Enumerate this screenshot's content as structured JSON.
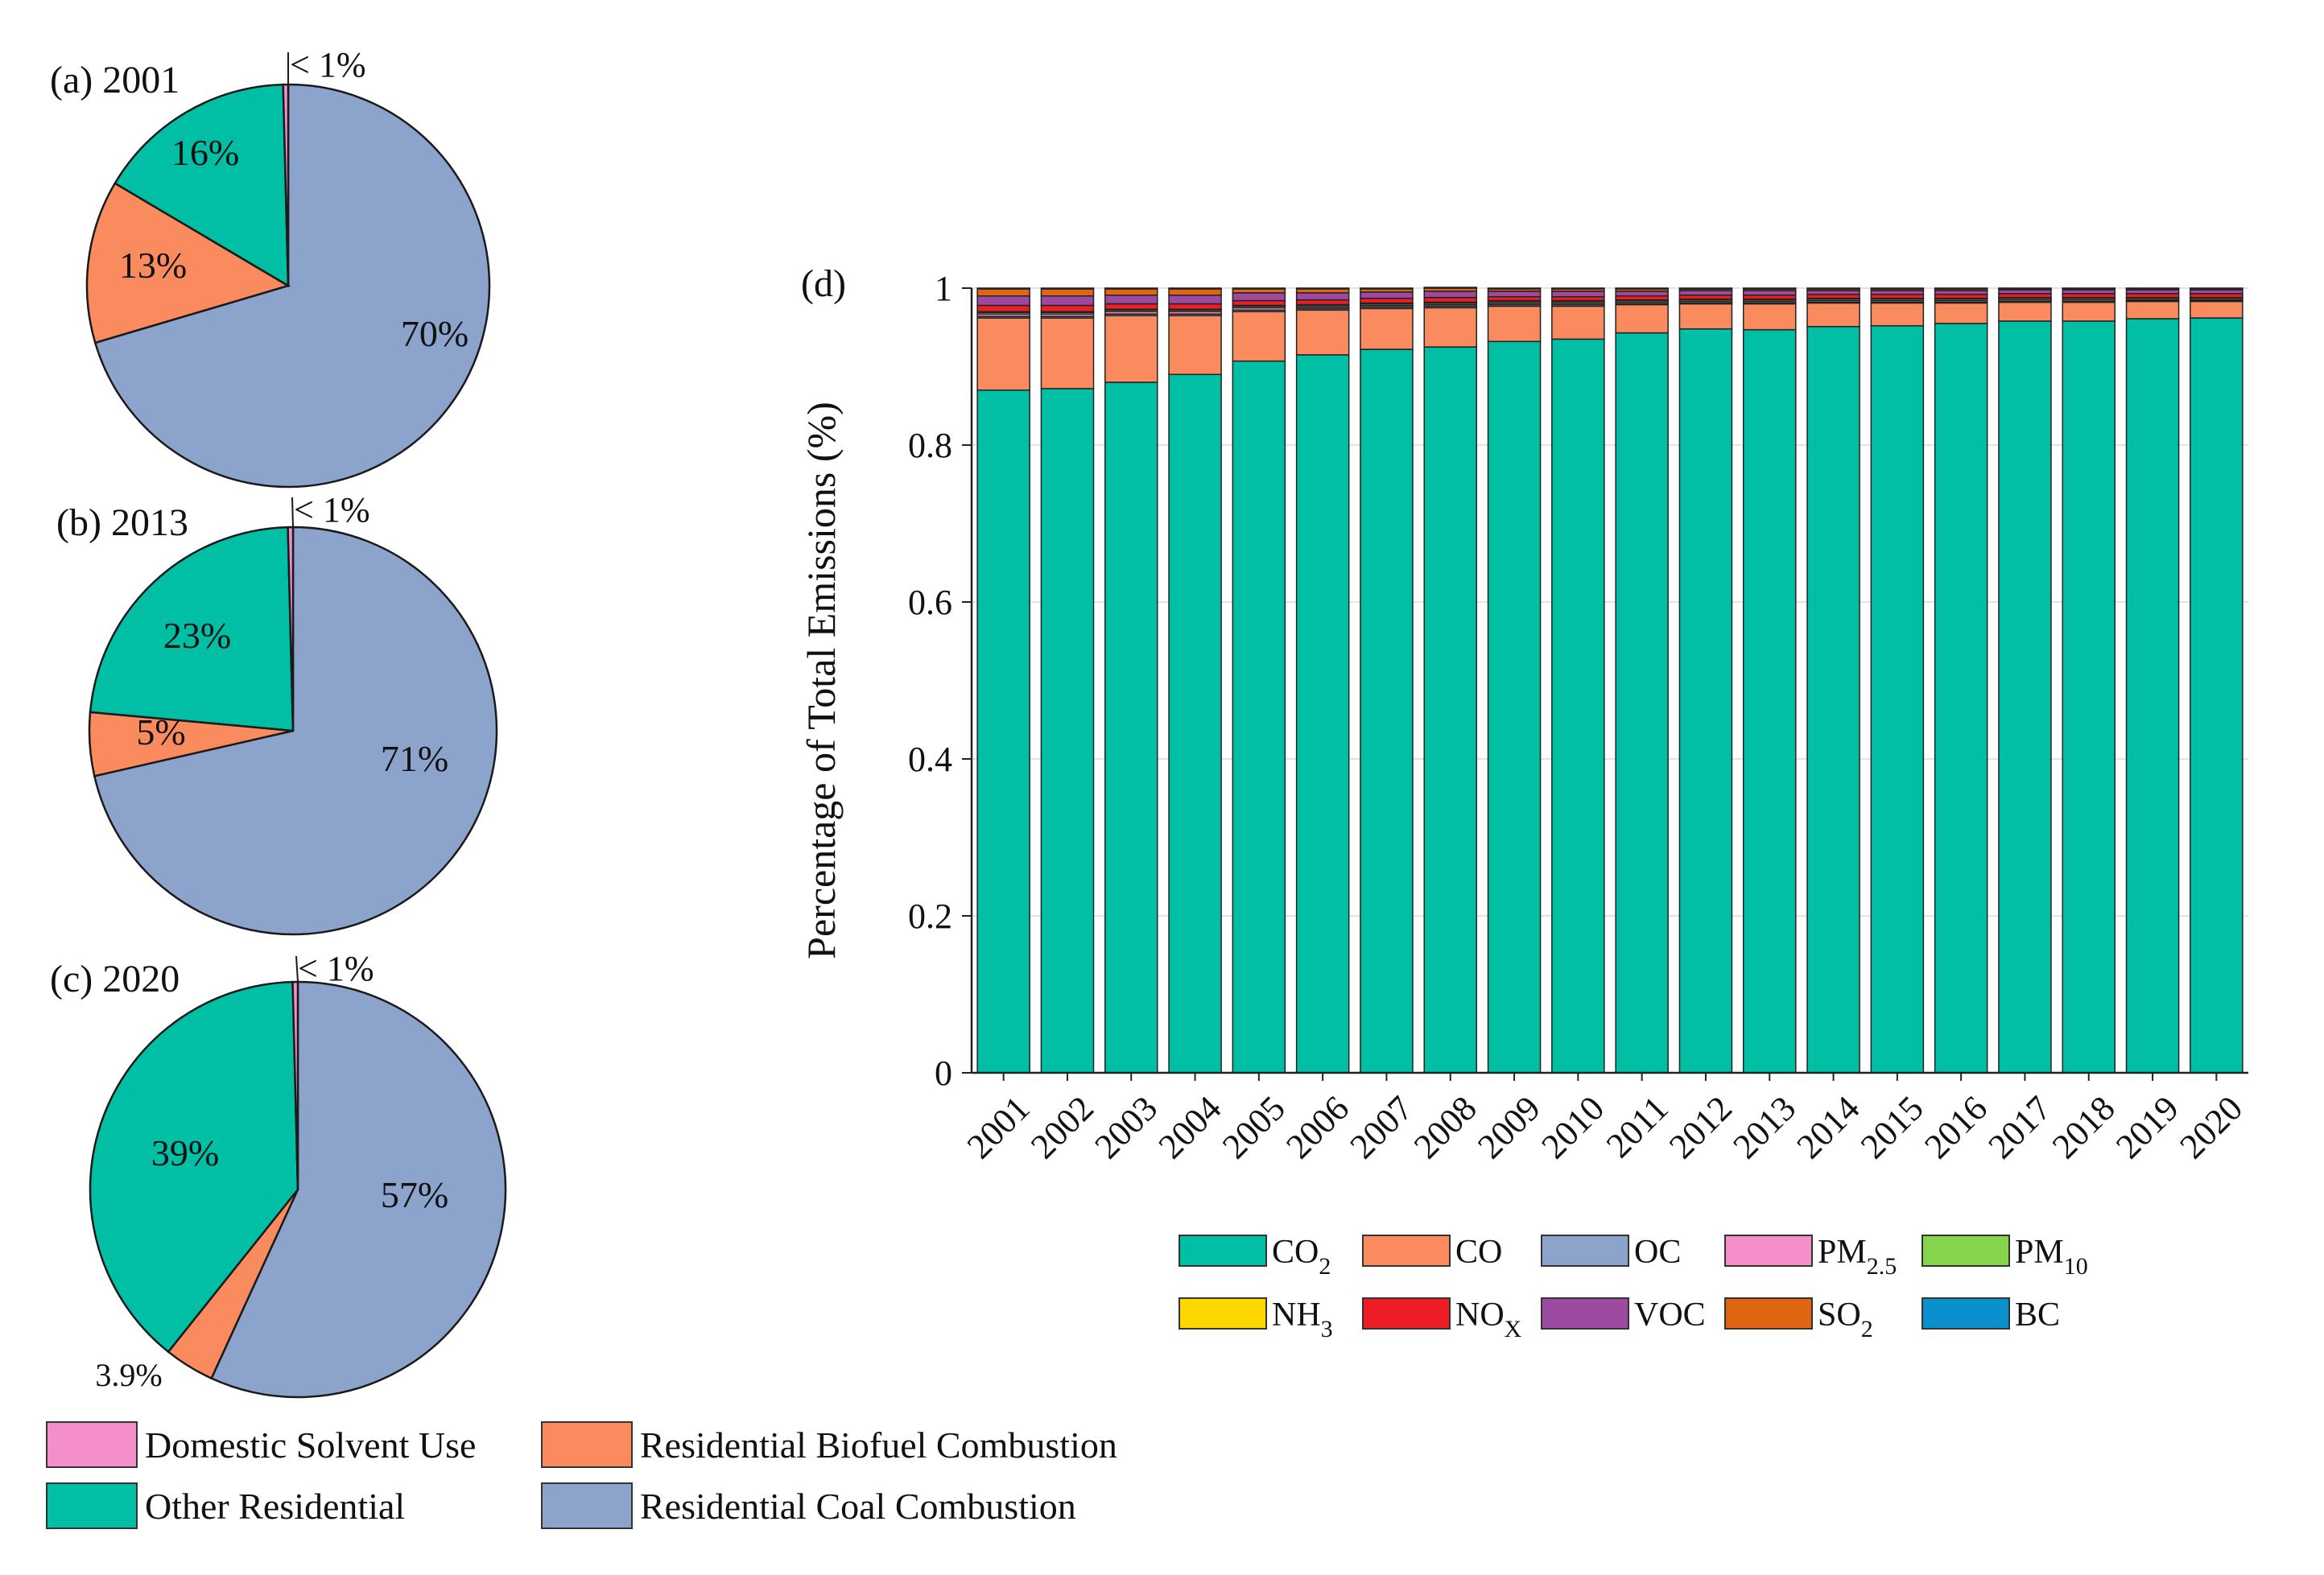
{
  "chart_data": [
    {
      "type": "pie",
      "panel": "(a) 2001",
      "slices": [
        {
          "category": "Residential Coal Combustion",
          "value": 70,
          "label": "70%"
        },
        {
          "category": "Residential Biofuel Combustion",
          "value": 13,
          "label": "13%"
        },
        {
          "category": "Other Residential",
          "value": 16,
          "label": "16%"
        },
        {
          "category": "Domestic Solvent Use",
          "value": 0.4,
          "label": "< 1%"
        }
      ]
    },
    {
      "type": "pie",
      "panel": "(b) 2013",
      "slices": [
        {
          "category": "Residential Coal Combustion",
          "value": 71,
          "label": "71%"
        },
        {
          "category": "Residential Biofuel Combustion",
          "value": 5,
          "label": "5%"
        },
        {
          "category": "Other Residential",
          "value": 23,
          "label": "23%"
        },
        {
          "category": "Domestic Solvent Use",
          "value": 0.4,
          "label": "< 1%"
        }
      ]
    },
    {
      "type": "pie",
      "panel": "(c) 2020",
      "slices": [
        {
          "category": "Residential Coal Combustion",
          "value": 57,
          "label": "57%"
        },
        {
          "category": "Residential Biofuel Combustion",
          "value": 3.9,
          "label": "3.9%"
        },
        {
          "category": "Other Residential",
          "value": 39,
          "label": "39%"
        },
        {
          "category": "Domestic Solvent Use",
          "value": 0.4,
          "label": "< 1%"
        }
      ]
    },
    {
      "type": "bar",
      "stacked": true,
      "panel": "(d)",
      "categories": [
        "2001",
        "2002",
        "2003",
        "2004",
        "2005",
        "2006",
        "2007",
        "2008",
        "2009",
        "2010",
        "2011",
        "2012",
        "2013",
        "2014",
        "2015",
        "2016",
        "2017",
        "2018",
        "2019",
        "2020"
      ],
      "ylabel": "Percentage of Total Emissions (%)",
      "ylim": [
        0,
        1
      ],
      "yticks": [
        "0",
        "0.2",
        "0.4",
        "0.6",
        "0.8",
        "1"
      ],
      "series": [
        {
          "name": "CO2",
          "values": [
            0.87,
            0.872,
            0.88,
            0.89,
            0.907,
            0.915,
            0.922,
            0.925,
            0.932,
            0.935,
            0.943,
            0.948,
            0.947,
            0.951,
            0.952,
            0.955,
            0.958,
            0.958,
            0.961,
            0.962
          ]
        },
        {
          "name": "CO",
          "values": [
            0.092,
            0.09,
            0.085,
            0.075,
            0.063,
            0.057,
            0.052,
            0.05,
            0.045,
            0.042,
            0.036,
            0.032,
            0.033,
            0.03,
            0.029,
            0.026,
            0.024,
            0.024,
            0.022,
            0.021
          ]
        },
        {
          "name": "OC",
          "values": [
            0.002,
            0.002,
            0.002,
            0.002,
            0.002,
            0.002,
            0.002,
            0.002,
            0.002,
            0.002,
            0.001,
            0.001,
            0.001,
            0.001,
            0.001,
            0.001,
            0.001,
            0.001,
            0.001,
            0.001
          ]
        },
        {
          "name": "PM2.5",
          "values": [
            0.003,
            0.003,
            0.003,
            0.003,
            0.003,
            0.002,
            0.002,
            0.002,
            0.002,
            0.002,
            0.002,
            0.002,
            0.002,
            0.002,
            0.002,
            0.002,
            0.002,
            0.002,
            0.001,
            0.001
          ]
        },
        {
          "name": "PM10",
          "values": [
            0.002,
            0.002,
            0.002,
            0.002,
            0.002,
            0.002,
            0.002,
            0.002,
            0.002,
            0.002,
            0.002,
            0.002,
            0.002,
            0.002,
            0.002,
            0.002,
            0.002,
            0.002,
            0.002,
            0.002
          ]
        },
        {
          "name": "NH3",
          "values": [
            0.001,
            0.001,
            0.001,
            0.001,
            0.001,
            0.001,
            0.001,
            0.001,
            0.001,
            0.001,
            0.001,
            0.001,
            0.001,
            0.001,
            0.001,
            0.001,
            0.001,
            0.001,
            0.001,
            0.001
          ]
        },
        {
          "name": "NOX",
          "values": [
            0.008,
            0.008,
            0.007,
            0.007,
            0.006,
            0.006,
            0.006,
            0.006,
            0.005,
            0.005,
            0.005,
            0.005,
            0.005,
            0.005,
            0.005,
            0.005,
            0.005,
            0.005,
            0.005,
            0.005
          ]
        },
        {
          "name": "VOC",
          "values": [
            0.012,
            0.012,
            0.011,
            0.011,
            0.01,
            0.009,
            0.008,
            0.008,
            0.007,
            0.007,
            0.006,
            0.006,
            0.006,
            0.005,
            0.005,
            0.005,
            0.005,
            0.005,
            0.005,
            0.005
          ]
        },
        {
          "name": "SO2",
          "values": [
            0.009,
            0.009,
            0.008,
            0.008,
            0.005,
            0.005,
            0.004,
            0.004,
            0.003,
            0.003,
            0.003,
            0.002,
            0.002,
            0.002,
            0.002,
            0.002,
            0.001,
            0.001,
            0.001,
            0.001
          ]
        },
        {
          "name": "BC",
          "values": [
            0.001,
            0.001,
            0.001,
            0.001,
            0.001,
            0.001,
            0.001,
            0.001,
            0.001,
            0.001,
            0.001,
            0.001,
            0.001,
            0.001,
            0.001,
            0.001,
            0.001,
            0.001,
            0.001,
            0.001
          ]
        }
      ]
    }
  ],
  "pie_legend": [
    {
      "label": "Domestic Solvent Use",
      "color": "#f48fca"
    },
    {
      "label": "Residential Biofuel Combustion",
      "color": "#fa8b5f"
    },
    {
      "label": "Other Residential",
      "color": "#00bfa5"
    },
    {
      "label": "Residential Coal Combustion",
      "color": "#8ca3cc"
    }
  ],
  "bar_legend": [
    {
      "base": "CO",
      "sub": "2",
      "color": "#00bfa5"
    },
    {
      "base": "CO",
      "sub": "",
      "color": "#fa8b5f"
    },
    {
      "base": "OC",
      "sub": "",
      "color": "#8ca3cc"
    },
    {
      "base": "PM",
      "sub": "2.5",
      "color": "#f48fca"
    },
    {
      "base": "PM",
      "sub": "10",
      "color": "#86d44b"
    },
    {
      "base": "NH",
      "sub": "3",
      "color": "#ffd700"
    },
    {
      "base": "NO",
      "sub": "X",
      "color": "#ee1c25"
    },
    {
      "base": "VOC",
      "sub": "",
      "color": "#9b4aa0"
    },
    {
      "base": "SO",
      "sub": "2",
      "color": "#e06512"
    },
    {
      "base": "BC",
      "sub": "",
      "color": "#0a90cc"
    }
  ],
  "colors": {
    "coal": "#8ca3cc",
    "biofuel": "#fa8b5f",
    "other": "#00bfa5",
    "solvent": "#f48fca"
  }
}
